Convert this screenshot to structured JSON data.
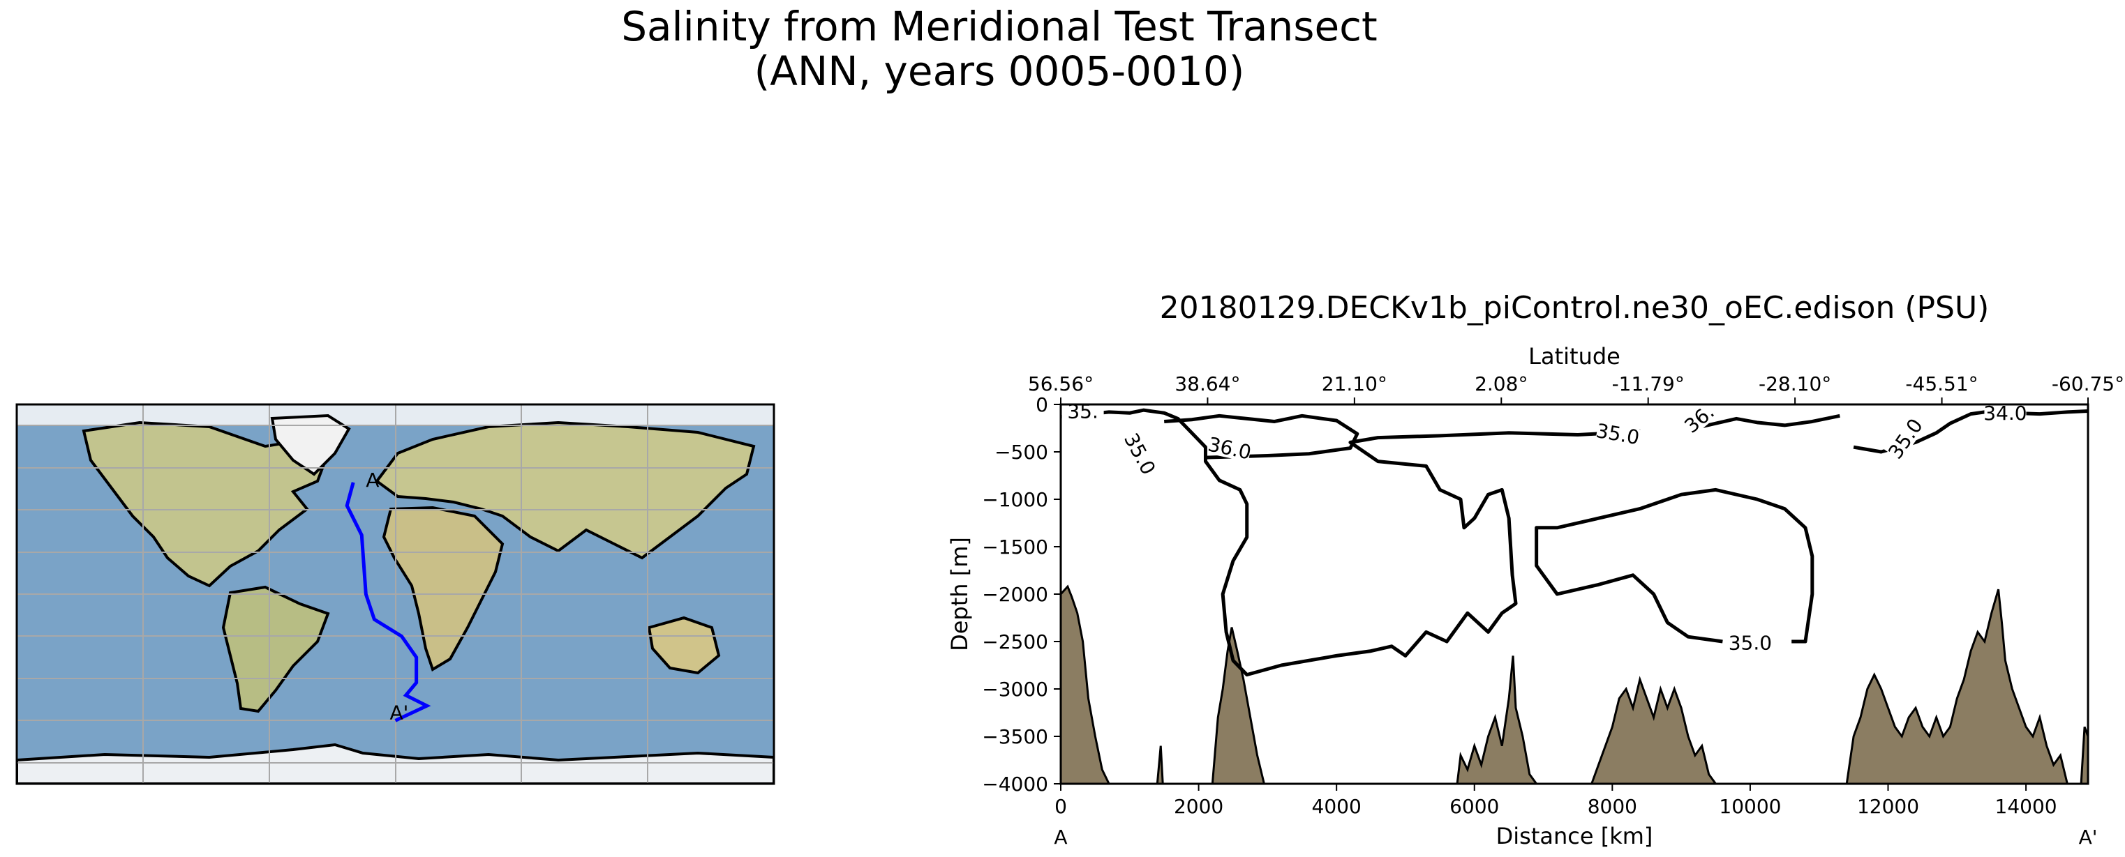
{
  "figure": {
    "title_line1": "Salinity from Meridional Test Transect",
    "title_line2": "(ANN, years 0005-0010)"
  },
  "map": {
    "transect_color": "#0000ff",
    "transect_lonlat": [
      [
        -20,
        53
      ],
      [
        -23,
        42
      ],
      [
        -16,
        28
      ],
      [
        -14,
        0
      ],
      [
        -10,
        -12
      ],
      [
        3,
        -20
      ],
      [
        10,
        -30
      ],
      [
        10,
        -42
      ],
      [
        5,
        -48
      ],
      [
        15,
        -53
      ],
      [
        0,
        -60
      ]
    ],
    "start_label": "A",
    "end_label": "A'",
    "ocean_color": "#7aa3c7",
    "land_color": "#c8c89a"
  },
  "chart_data": {
    "type": "contour",
    "title": "20180129.DECKv1b_piControl.ne30_oEC.edison (PSU)",
    "xlabel": "Distance [km]",
    "ylabel": "Depth [m]",
    "top_xlabel": "Latitude",
    "xlim": [
      0,
      14900
    ],
    "ylim": [
      -4000,
      0
    ],
    "x_ticks": [
      0,
      2000,
      4000,
      6000,
      8000,
      10000,
      12000,
      14000
    ],
    "x_tick_labels": [
      "0",
      "2000",
      "4000",
      "6000",
      "8000",
      "10000",
      "12000",
      "14000"
    ],
    "y_ticks": [
      0,
      -500,
      -1000,
      -1500,
      -2000,
      -2500,
      -3000,
      -3500,
      -4000
    ],
    "y_tick_labels": [
      "0",
      "−500",
      "−1000",
      "−1500",
      "−2000",
      "−2500",
      "−3000",
      "−3500",
      "−4000"
    ],
    "top_ticks": [
      0,
      2130,
      4260,
      6390,
      8520,
      10650,
      12780,
      14900
    ],
    "top_tick_labels": [
      "56.56°",
      "38.64°",
      "21.10°",
      "2.08°",
      "-11.79°",
      "-28.10°",
      "-45.51°",
      "-60.75°"
    ],
    "left_end_label": "A",
    "right_end_label": "A'",
    "bathymetry_color": "#8b7d62",
    "bathymetry": [
      [
        0,
        -4000
      ],
      [
        0,
        -2000
      ],
      [
        100,
        -1920
      ],
      [
        160,
        -2030
      ],
      [
        240,
        -2200
      ],
      [
        320,
        -2500
      ],
      [
        400,
        -3100
      ],
      [
        500,
        -3500
      ],
      [
        600,
        -3850
      ],
      [
        700,
        -4000
      ],
      [
        1400,
        -4000
      ],
      [
        1450,
        -3600
      ],
      [
        1480,
        -4000
      ],
      [
        2200,
        -4000
      ],
      [
        2280,
        -3300
      ],
      [
        2350,
        -3000
      ],
      [
        2420,
        -2600
      ],
      [
        2480,
        -2350
      ],
      [
        2560,
        -2600
      ],
      [
        2650,
        -2900
      ],
      [
        2750,
        -3300
      ],
      [
        2850,
        -3700
      ],
      [
        2950,
        -4000
      ],
      [
        5750,
        -4000
      ],
      [
        5800,
        -3700
      ],
      [
        5900,
        -3850
      ],
      [
        6000,
        -3600
      ],
      [
        6100,
        -3800
      ],
      [
        6200,
        -3500
      ],
      [
        6300,
        -3300
      ],
      [
        6400,
        -3600
      ],
      [
        6500,
        -3100
      ],
      [
        6560,
        -2650
      ],
      [
        6600,
        -3200
      ],
      [
        6700,
        -3500
      ],
      [
        6800,
        -3900
      ],
      [
        6900,
        -4000
      ],
      [
        7700,
        -4000
      ],
      [
        7800,
        -3800
      ],
      [
        7900,
        -3600
      ],
      [
        8000,
        -3400
      ],
      [
        8100,
        -3100
      ],
      [
        8200,
        -3000
      ],
      [
        8300,
        -3200
      ],
      [
        8400,
        -2900
      ],
      [
        8500,
        -3100
      ],
      [
        8600,
        -3300
      ],
      [
        8700,
        -3000
      ],
      [
        8800,
        -3200
      ],
      [
        8900,
        -3000
      ],
      [
        9000,
        -3200
      ],
      [
        9100,
        -3500
      ],
      [
        9200,
        -3700
      ],
      [
        9300,
        -3600
      ],
      [
        9400,
        -3900
      ],
      [
        9500,
        -4000
      ],
      [
        11400,
        -4000
      ],
      [
        11500,
        -3500
      ],
      [
        11600,
        -3300
      ],
      [
        11700,
        -3000
      ],
      [
        11800,
        -2850
      ],
      [
        11900,
        -3000
      ],
      [
        12000,
        -3200
      ],
      [
        12100,
        -3400
      ],
      [
        12200,
        -3500
      ],
      [
        12300,
        -3300
      ],
      [
        12400,
        -3200
      ],
      [
        12500,
        -3400
      ],
      [
        12600,
        -3500
      ],
      [
        12700,
        -3300
      ],
      [
        12800,
        -3500
      ],
      [
        12900,
        -3400
      ],
      [
        13000,
        -3100
      ],
      [
        13100,
        -2900
      ],
      [
        13200,
        -2600
      ],
      [
        13300,
        -2400
      ],
      [
        13400,
        -2500
      ],
      [
        13500,
        -2200
      ],
      [
        13600,
        -1950
      ],
      [
        13650,
        -2300
      ],
      [
        13700,
        -2700
      ],
      [
        13800,
        -3000
      ],
      [
        13900,
        -3200
      ],
      [
        14000,
        -3400
      ],
      [
        14100,
        -3500
      ],
      [
        14200,
        -3300
      ],
      [
        14300,
        -3600
      ],
      [
        14400,
        -3800
      ],
      [
        14500,
        -3700
      ],
      [
        14600,
        -4000
      ],
      [
        14800,
        -4000
      ],
      [
        14850,
        -3400
      ],
      [
        14900,
        -3500
      ],
      [
        14900,
        -4000
      ]
    ],
    "contours": [
      {
        "level": 35.0,
        "points": [
          [
            0,
            -130
          ],
          [
            300,
            -110
          ],
          [
            700,
            -80
          ],
          [
            1000,
            -90
          ],
          [
            1200,
            -60
          ],
          [
            1500,
            -90
          ],
          [
            1700,
            -150
          ],
          [
            1900,
            -300
          ],
          [
            2100,
            -450
          ],
          [
            2100,
            -600
          ],
          [
            2300,
            -800
          ],
          [
            2600,
            -900
          ],
          [
            2700,
            -1050
          ],
          [
            2700,
            -1400
          ],
          [
            2500,
            -1650
          ],
          [
            2350,
            -2000
          ],
          [
            2400,
            -2400
          ],
          [
            2500,
            -2700
          ],
          [
            2700,
            -2850
          ],
          [
            3200,
            -2750
          ],
          [
            3600,
            -2700
          ],
          [
            4000,
            -2650
          ],
          [
            4500,
            -2600
          ],
          [
            4800,
            -2550
          ],
          [
            5000,
            -2650
          ],
          [
            5300,
            -2400
          ],
          [
            5600,
            -2500
          ],
          [
            5900,
            -2200
          ],
          [
            6200,
            -2400
          ],
          [
            6400,
            -2200
          ],
          [
            6600,
            -2100
          ],
          [
            6550,
            -1800
          ],
          [
            6500,
            -1200
          ],
          [
            6400,
            -900
          ],
          [
            6200,
            -950
          ],
          [
            6000,
            -1200
          ],
          [
            5850,
            -1300
          ],
          [
            5800,
            -1000
          ],
          [
            5500,
            -900
          ],
          [
            5300,
            -650
          ],
          [
            4600,
            -600
          ],
          [
            4200,
            -400
          ],
          [
            4600,
            -350
          ],
          [
            5500,
            -330
          ],
          [
            6500,
            -300
          ],
          [
            7500,
            -320
          ],
          [
            8000,
            -300
          ],
          [
            8400,
            -250
          ]
        ]
      },
      {
        "level": 35.0,
        "points": [
          [
            9600,
            -2500
          ],
          [
            9100,
            -2450
          ],
          [
            8800,
            -2300
          ],
          [
            8600,
            -2000
          ],
          [
            8300,
            -1800
          ],
          [
            7800,
            -1900
          ],
          [
            7200,
            -2000
          ],
          [
            6900,
            -1700
          ],
          [
            6900,
            -1300
          ],
          [
            7200,
            -1300
          ],
          [
            7800,
            -1200
          ],
          [
            8400,
            -1100
          ],
          [
            9000,
            -950
          ],
          [
            9500,
            -900
          ],
          [
            10100,
            -1000
          ],
          [
            10500,
            -1100
          ],
          [
            10800,
            -1300
          ],
          [
            10900,
            -1600
          ],
          [
            10900,
            -2000
          ],
          [
            10800,
            -2500
          ],
          [
            10600,
            -2500
          ]
        ]
      },
      {
        "level": 36.0,
        "points": [
          [
            1500,
            -180
          ],
          [
            1900,
            -160
          ],
          [
            2300,
            -120
          ],
          [
            2700,
            -150
          ],
          [
            3100,
            -180
          ],
          [
            3500,
            -120
          ],
          [
            4000,
            -170
          ],
          [
            4300,
            -310
          ],
          [
            4200,
            -460
          ],
          [
            3600,
            -520
          ],
          [
            3000,
            -540
          ],
          [
            2100,
            -560
          ]
        ]
      },
      {
        "level": 36.0,
        "points": [
          [
            9200,
            -250
          ],
          [
            9500,
            -200
          ],
          [
            9800,
            -150
          ],
          [
            10100,
            -190
          ],
          [
            10500,
            -220
          ],
          [
            10900,
            -180
          ],
          [
            11300,
            -120
          ]
        ]
      },
      {
        "level": 35.0,
        "points": [
          [
            11500,
            -450
          ],
          [
            11900,
            -500
          ],
          [
            12400,
            -400
          ],
          [
            12700,
            -300
          ],
          [
            12900,
            -200
          ],
          [
            13200,
            -100
          ],
          [
            13600,
            -60
          ]
        ]
      },
      {
        "level": 34.0,
        "points": [
          [
            13800,
            -90
          ],
          [
            14200,
            -100
          ],
          [
            14600,
            -80
          ],
          [
            14900,
            -70
          ]
        ]
      }
    ],
    "contour_labels": [
      {
        "text": "35.0",
        "x": 1150,
        "y": -520,
        "angle": 62
      },
      {
        "text": "36.0",
        "x": 2450,
        "y": -460,
        "angle": 12
      },
      {
        "text": "35.0",
        "x": 8080,
        "y": -310,
        "angle": 10
      },
      {
        "text": "36.",
        "x": 9260,
        "y": -150,
        "angle": -40
      },
      {
        "text": "35.0",
        "x": 12250,
        "y": -360,
        "angle": -55
      },
      {
        "text": "34.0",
        "x": 13700,
        "y": -90,
        "angle": 0
      },
      {
        "text": "35.0",
        "x": 10000,
        "y": -2510,
        "angle": 0
      },
      {
        "text": "35.",
        "x": 320,
        "y": -70,
        "angle": 0
      }
    ]
  }
}
